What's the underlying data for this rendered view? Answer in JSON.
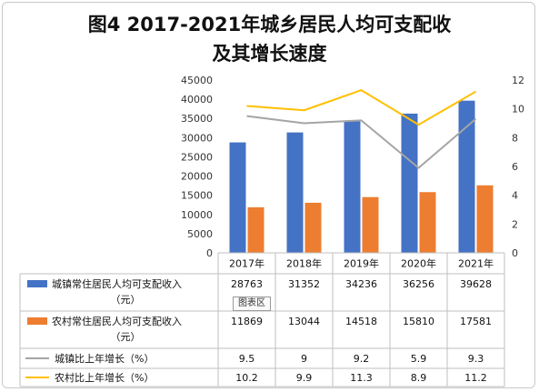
{
  "title": {
    "line1": "图4   2017-2021年城乡居民人均可支配收",
    "line2": "及其增长速度"
  },
  "tooltip": "图表区",
  "colors": {
    "urban_bar": "#4472C4",
    "rural_bar": "#ED7D31",
    "urban_line": "#A5A5A5",
    "rural_line": "#FFC000",
    "grid": "#d9d9d9",
    "table_border": "#bfbfbf"
  },
  "chart_data": {
    "type": "bar",
    "categories": [
      "2017年",
      "2018年",
      "2019年",
      "2020年",
      "2021年"
    ],
    "series": [
      {
        "name": "城镇常住居民人均可支配收入（元）",
        "type": "bar",
        "axis": "left",
        "values": [
          28763,
          31352,
          34236,
          36256,
          39628
        ]
      },
      {
        "name": "农村常住居民人均可支配收入（元）",
        "type": "bar",
        "axis": "left",
        "values": [
          11869,
          13044,
          14518,
          15810,
          17581
        ]
      },
      {
        "name": "城镇比上年增长（%）",
        "type": "line",
        "axis": "right",
        "values": [
          9.5,
          9,
          9.2,
          5.9,
          9.3
        ]
      },
      {
        "name": "农村比上年增长（%）",
        "type": "line",
        "axis": "right",
        "values": [
          10.2,
          9.9,
          11.3,
          8.9,
          11.2
        ]
      }
    ],
    "ylim": [
      0,
      45000
    ],
    "yticks": [
      "0",
      "5000",
      "10000",
      "15000",
      "20000",
      "25000",
      "30000",
      "35000",
      "40000",
      "45000"
    ],
    "y2lim": [
      0,
      12
    ],
    "y2ticks": [
      "0",
      "2",
      "4",
      "6",
      "8",
      "10",
      "12"
    ],
    "grid": false,
    "legend": "data-table",
    "table_values": [
      [
        "28763",
        "31352",
        "34236",
        "36256",
        "39628"
      ],
      [
        "11869",
        "13044",
        "14518",
        "15810",
        "17581"
      ],
      [
        "9.5",
        "9",
        "9.2",
        "5.9",
        "9.3"
      ],
      [
        "10.2",
        "9.9",
        "11.3",
        "8.9",
        "11.2"
      ]
    ]
  }
}
